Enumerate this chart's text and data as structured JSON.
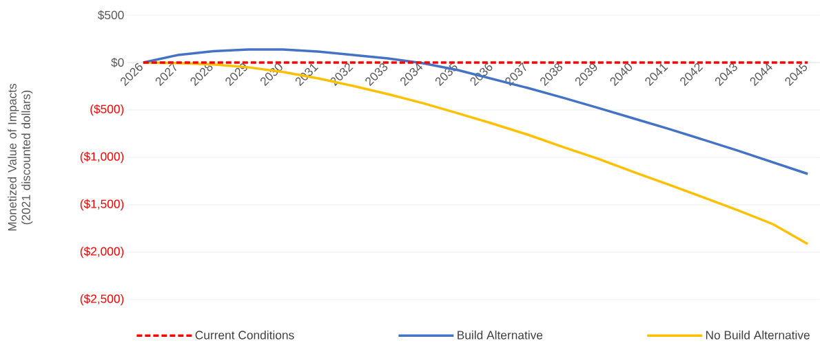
{
  "chart_data": {
    "type": "line",
    "ylabel": "Monetized Value of Impacts (2021 discounted dollars)",
    "categories": [
      "2026",
      "2027",
      "2028",
      "2029",
      "2030",
      "2031",
      "2032",
      "2033",
      "2034",
      "2035",
      "2036",
      "2037",
      "2038",
      "2039",
      "2040",
      "2041",
      "2042",
      "2043",
      "2044",
      "2045"
    ],
    "ylim": [
      -2500,
      500
    ],
    "yticks": [
      {
        "value": 500,
        "label": "$500"
      },
      {
        "value": 0,
        "label": "$0"
      },
      {
        "value": -500,
        "label": "($500)"
      },
      {
        "value": -1000,
        "label": "($1,000)"
      },
      {
        "value": -1500,
        "label": "($1,500)"
      },
      {
        "value": -2000,
        "label": "($2,000)"
      },
      {
        "value": -2500,
        "label": "($2,500)"
      }
    ],
    "grid": "y",
    "legend": "bottom",
    "marker": "none",
    "series": [
      {
        "name": "Current Conditions",
        "color": "#ff0000",
        "line_style": "dashed",
        "values": [
          0,
          0,
          0,
          0,
          0,
          0,
          0,
          0,
          0,
          0,
          0,
          0,
          0,
          0,
          0,
          0,
          0,
          0,
          0,
          0
        ]
      },
      {
        "name": "Build Alternative",
        "color": "#4472c4",
        "line_style": "solid",
        "values": [
          0,
          80,
          120,
          138,
          138,
          116,
          80,
          43,
          -7,
          -80,
          -174,
          -268,
          -370,
          -478,
          -587,
          -696,
          -812,
          -928,
          -1051,
          -1174
        ]
      },
      {
        "name": "No Build Alternative",
        "color": "#ffc000",
        "line_style": "solid",
        "values": [
          0,
          -5,
          -20,
          -50,
          -100,
          -167,
          -246,
          -333,
          -428,
          -536,
          -645,
          -761,
          -891,
          -1014,
          -1152,
          -1283,
          -1420,
          -1558,
          -1703,
          -1913
        ]
      }
    ]
  }
}
